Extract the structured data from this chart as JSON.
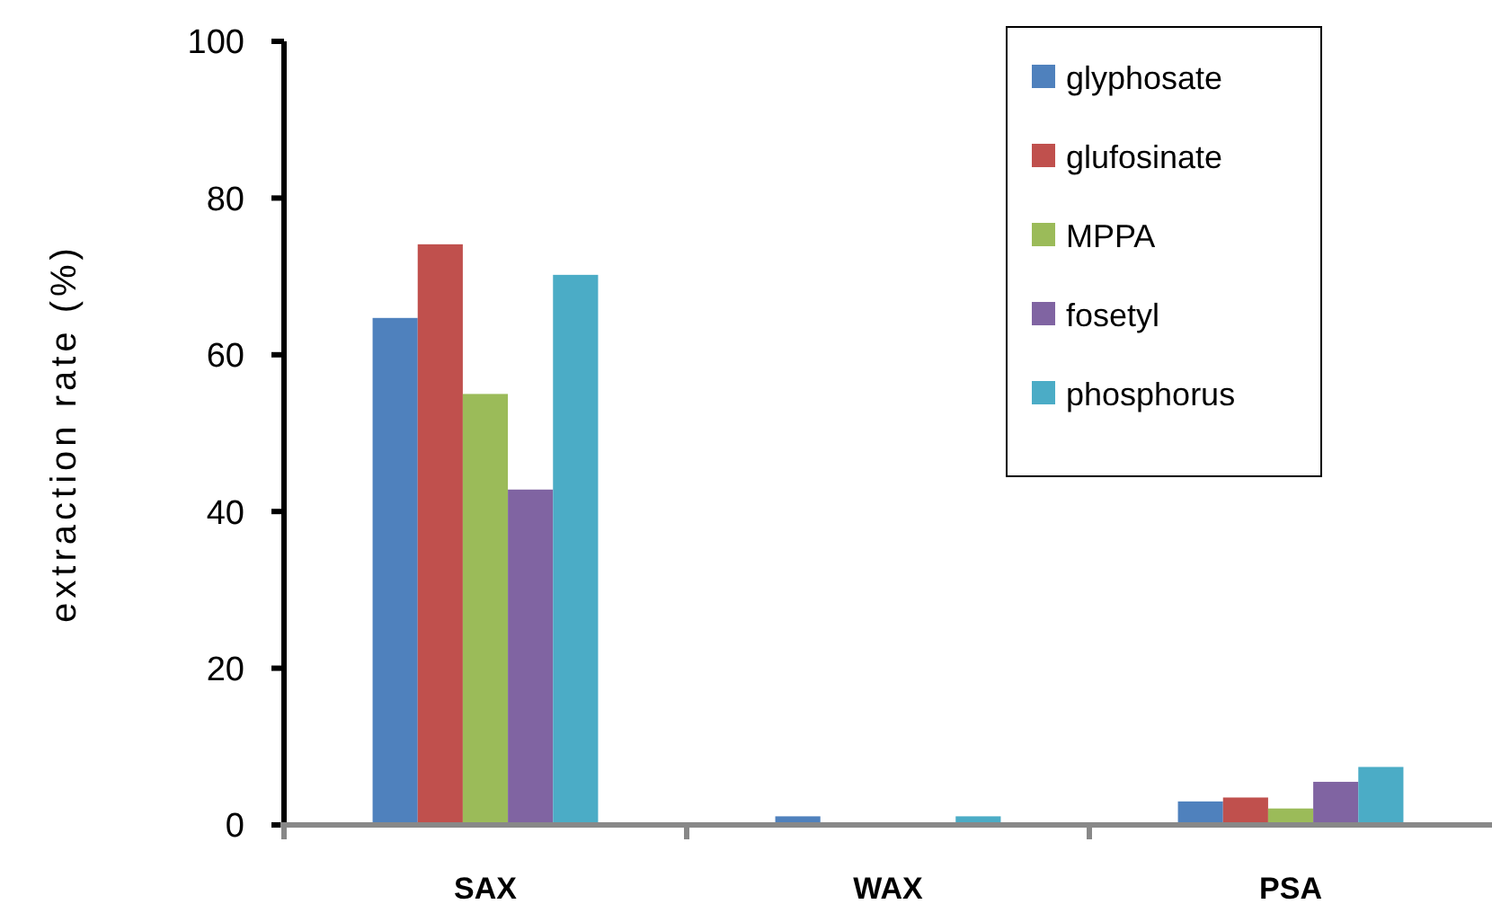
{
  "chart_data": {
    "type": "bar",
    "ylabel": "extraction rate (%)",
    "categories": [
      "SAX",
      "WAX",
      "PSA"
    ],
    "series": [
      {
        "name": "glyphosate",
        "color": "#4f81bd",
        "values": [
          64.7,
          1.1,
          3.0
        ]
      },
      {
        "name": "glufosinate",
        "color": "#c0504d",
        "values": [
          74.1,
          0,
          3.5
        ]
      },
      {
        "name": "MPPA",
        "color": "#9bbb59",
        "values": [
          55.0,
          0,
          2.1
        ]
      },
      {
        "name": "fosetyl",
        "color": "#8064a2",
        "values": [
          42.8,
          0,
          5.5
        ]
      },
      {
        "name": "phosphorus",
        "color": "#4bacc6",
        "values": [
          70.2,
          1.1,
          7.4
        ]
      }
    ],
    "ylim": [
      0,
      100
    ],
    "yticks": [
      0,
      20,
      40,
      60,
      80,
      100
    ],
    "grid": false,
    "legend": "top right"
  }
}
